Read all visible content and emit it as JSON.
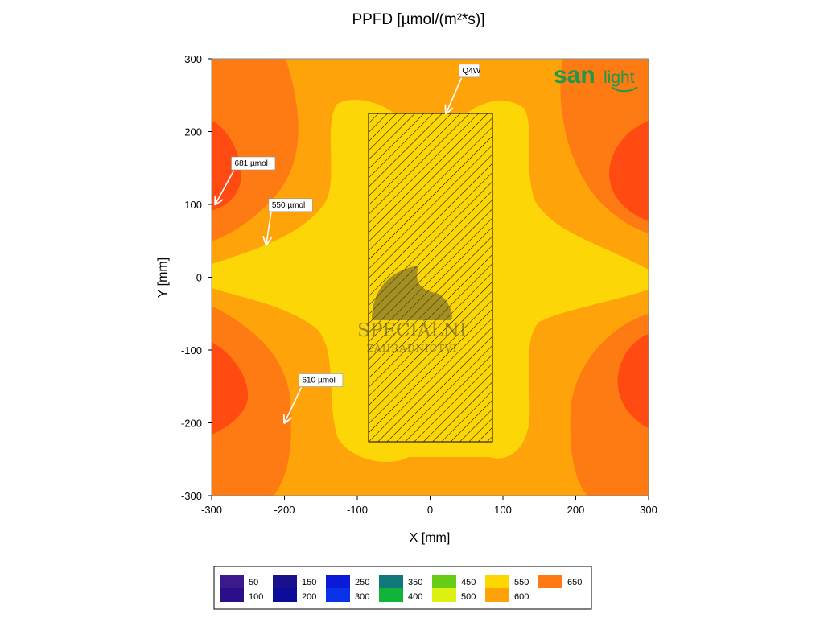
{
  "chart_data": {
    "type": "heatmap",
    "title": "PPFD [µmol/(m²*s)]",
    "xlabel": "X [mm]",
    "ylabel": "Y [mm]",
    "xlim": [
      -300,
      300
    ],
    "ylim": [
      -300,
      300
    ],
    "x_ticks": [
      -300,
      -200,
      -100,
      0,
      100,
      200,
      300
    ],
    "y_ticks": [
      300,
      200,
      100,
      0,
      -100,
      -200,
      -300
    ],
    "fixture": {
      "label": "Q4W",
      "x_range": [
        -85,
        85
      ],
      "y_range": [
        -228,
        225
      ]
    },
    "annotations": [
      {
        "text": "Q4W",
        "x": 22,
        "y": 225
      },
      {
        "text": "681 µmol",
        "x": -295,
        "y": 100
      },
      {
        "text": "550 µmol",
        "x": -225,
        "y": 45
      },
      {
        "text": "610 µmol",
        "x": -200,
        "y": -200
      }
    ],
    "legend": [
      {
        "top": "50",
        "bottom": "100",
        "colors": [
          "#3d1a8c",
          "#2a0e8a"
        ]
      },
      {
        "top": "150",
        "bottom": "200",
        "colors": [
          "#18108c",
          "#0c0c9a"
        ]
      },
      {
        "top": "250",
        "bottom": "300",
        "colors": [
          "#0a1ad6",
          "#0a32e8"
        ]
      },
      {
        "top": "350",
        "bottom": "400",
        "colors": [
          "#107878",
          "#10b438"
        ]
      },
      {
        "top": "450",
        "bottom": "500",
        "colors": [
          "#66cc14",
          "#ddf014"
        ]
      },
      {
        "top": "550",
        "bottom": "600",
        "colors": [
          "#ffd700",
          "#ffa20a"
        ]
      },
      {
        "top": "650",
        "bottom": "",
        "colors": [
          "#ff7a14",
          ""
        ]
      }
    ],
    "level_colors": {
      "550": "#fdd607",
      "600": "#fea30a",
      "650": "#fe7a12",
      "680": "#ff4a12"
    }
  },
  "brand": {
    "word1": "san",
    "word2": "light"
  },
  "watermark": {
    "line1": "SPECIÁLNÍ",
    "line2": "ZAHRADNICTVÍ"
  }
}
